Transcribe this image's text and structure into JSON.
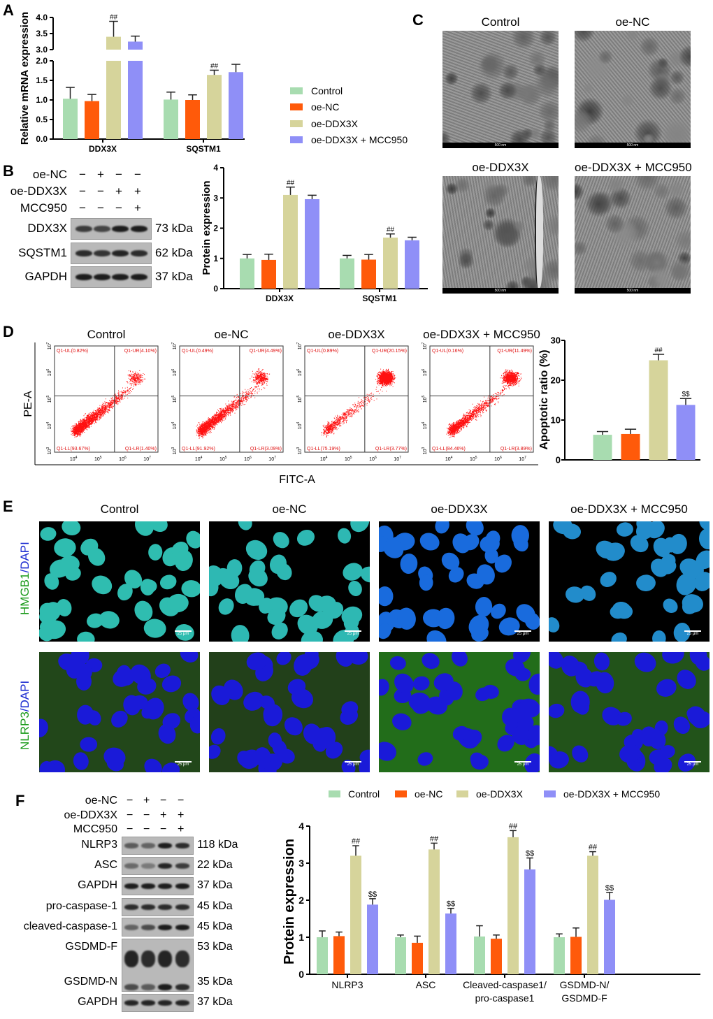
{
  "colors": {
    "Control": "#a8dcb0",
    "oe-NC": "#ff5a0a",
    "oe-DDX3X": "#d6d49b",
    "oe-DDX3X + MCC950": "#8f8ff7"
  },
  "panels": {
    "A": "A",
    "B": "B",
    "C": "C",
    "D": "D",
    "E": "E",
    "F": "F"
  },
  "legend": [
    "Control",
    "oe-NC",
    "oe-DDX3X",
    "oe-DDX3X + MCC950"
  ],
  "blotB": {
    "conditions": [
      {
        "label": "oe-NC",
        "signs": [
          "−",
          "+",
          "−",
          "−"
        ]
      },
      {
        "label": "oe-DDX3X",
        "signs": [
          "−",
          "−",
          "+",
          "+"
        ]
      },
      {
        "label": "MCC950",
        "signs": [
          "−",
          "−",
          "−",
          "+"
        ]
      }
    ],
    "rows": [
      {
        "label": "DDX3X",
        "kda": "73 kDa"
      },
      {
        "label": "SQSTM1",
        "kda": "62 kDa"
      },
      {
        "label": "GAPDH",
        "kda": "37 kDa"
      }
    ]
  },
  "tem": {
    "titles": [
      "Control",
      "oe-NC",
      "oe-DDX3X",
      "oe-DDX3X + MCC950"
    ],
    "scale": "500 nm",
    "arrow_color": "#e8201e"
  },
  "flow": {
    "titles": [
      "Control",
      "oe-NC",
      "oe-DDX3X",
      "oe-DDX3X + MCC950"
    ],
    "xlabel": "FITC-A",
    "ylabel": "PE-A",
    "ticks": [
      "10",
      "10",
      "10",
      "10",
      "10"
    ],
    "tick_exp": [
      "3",
      "4",
      "5",
      "6",
      "7"
    ],
    "quadrants": [
      {
        "UL": "Q1-UL(0.82%)",
        "UR": "Q1-UR(4.10%)",
        "LL": "Q1-LL(93.67%)",
        "LR": "Q1-LR(1.40%)"
      },
      {
        "UL": "Q1-UL(0.49%)",
        "UR": "Q1-UR(4.49%)",
        "LL": "Q1-LL(91.92%)",
        "LR": "Q1-LR(3.09%)"
      },
      {
        "UL": "Q1-UL(0.89%)",
        "UR": "Q1-UR(20.15%)",
        "LL": "Q1-LL(75.19%)",
        "LR": "Q1-LR(3.77%)"
      },
      {
        "UL": "Q1-UL(0.16%)",
        "UR": "Q1-UR(11.49%)",
        "LL": "Q1-LL(84.46%)",
        "LR": "Q1-LR(3.89%)"
      }
    ]
  },
  "if": {
    "titles": [
      "Control",
      "oe-NC",
      "oe-DDX3X",
      "oe-DDX3X + MCC950"
    ],
    "row1_label": {
      "a": "HMGB1",
      "b": "/DAPI"
    },
    "row2_label": {
      "a": "NLRP3",
      "b": "/DAPI"
    },
    "scale": "25 μm"
  },
  "blotF": {
    "conditions": [
      {
        "label": "oe-NC",
        "signs": [
          "−",
          "+",
          "−",
          "−"
        ]
      },
      {
        "label": "oe-DDX3X",
        "signs": [
          "−",
          "−",
          "+",
          "+"
        ]
      },
      {
        "label": "MCC950",
        "signs": [
          "−",
          "−",
          "−",
          "+"
        ]
      }
    ],
    "rows": [
      {
        "label": "NLRP3",
        "kda": "118 kDa"
      },
      {
        "label": "ASC",
        "kda": "22 kDa"
      },
      {
        "label": "GAPDH",
        "kda": "37 kDa"
      },
      {
        "label": "pro-caspase-1",
        "kda": "45 kDa"
      },
      {
        "label": "cleaved-caspase-1",
        "kda": "45 kDa"
      },
      {
        "label": "GSDMD-F",
        "kda": "53 kDa"
      },
      {
        "label": "GSDMD-N",
        "kda": "35 kDa"
      },
      {
        "label": "GAPDH",
        "kda": "37 kDa"
      }
    ]
  },
  "chart_data": [
    {
      "id": "A",
      "type": "bar",
      "ylabel": "Relative mRNA expression",
      "categories": [
        "DDX3X",
        "SQSTM1"
      ],
      "axis_break": [
        2.0,
        3.0
      ],
      "yticks": [
        "0.0",
        "0.5",
        "1.0",
        "1.5",
        "2.0",
        "3.0",
        "3.5",
        "4.0"
      ],
      "ylim": [
        0,
        4
      ],
      "series": [
        {
          "name": "Control",
          "values": [
            1.03,
            1.01
          ],
          "errors": [
            0.29,
            0.19
          ]
        },
        {
          "name": "oe-NC",
          "values": [
            0.97,
            1.0
          ],
          "errors": [
            0.17,
            0.13
          ]
        },
        {
          "name": "oe-DDX3X",
          "values": [
            3.4,
            1.64
          ],
          "errors": [
            0.48,
            0.12
          ],
          "annotations": [
            "##",
            "##"
          ]
        },
        {
          "name": "oe-DDX3X + MCC950",
          "values": [
            3.25,
            1.71
          ],
          "errors": [
            0.17,
            0.2
          ]
        }
      ]
    },
    {
      "id": "B",
      "type": "bar",
      "ylabel": "Protein expression",
      "categories": [
        "DDX3X",
        "SQSTM1"
      ],
      "yticks": [
        "0",
        "1",
        "2",
        "3",
        "4"
      ],
      "ylim": [
        0,
        4
      ],
      "series": [
        {
          "name": "Control",
          "values": [
            1.0,
            1.0
          ],
          "errors": [
            0.13,
            0.1
          ]
        },
        {
          "name": "oe-NC",
          "values": [
            0.95,
            0.96
          ],
          "errors": [
            0.19,
            0.17
          ]
        },
        {
          "name": "oe-DDX3X",
          "values": [
            3.1,
            1.69
          ],
          "errors": [
            0.26,
            0.12
          ],
          "annotations": [
            "##",
            "##"
          ]
        },
        {
          "name": "oe-DDX3X + MCC950",
          "values": [
            2.96,
            1.6
          ],
          "errors": [
            0.13,
            0.1
          ]
        }
      ]
    },
    {
      "id": "D",
      "type": "bar",
      "ylabel": "Apoptotic ratio (%)",
      "categories": [
        "Control",
        "oe-NC",
        "oe-DDX3X",
        "oe-DDX3X + MCC950"
      ],
      "yticks": [
        "0",
        "10",
        "20",
        "30"
      ],
      "ylim": [
        0,
        30
      ],
      "values": [
        6.3,
        6.5,
        25.0,
        13.8
      ],
      "errors": [
        0.8,
        1.2,
        1.5,
        1.6
      ],
      "annotations": [
        "",
        "",
        "##",
        "$$"
      ]
    },
    {
      "id": "F",
      "type": "bar",
      "ylabel": "Protein expression",
      "categories": [
        "NLRP3",
        "ASC",
        "Cleaved-caspase1/\npro-caspase1",
        "GSDMD-N/\nGSDMD-F"
      ],
      "yticks": [
        "0",
        "1",
        "2",
        "3",
        "4"
      ],
      "ylim": [
        0,
        4
      ],
      "legend": "top",
      "series": [
        {
          "name": "Control",
          "values": [
            1.0,
            1.0,
            1.02,
            1.0
          ],
          "errors": [
            0.17,
            0.06,
            0.29,
            0.09
          ]
        },
        {
          "name": "oe-NC",
          "values": [
            1.03,
            0.85,
            0.96,
            1.01
          ],
          "errors": [
            0.11,
            0.18,
            0.1,
            0.24
          ]
        },
        {
          "name": "oe-DDX3X",
          "values": [
            3.2,
            3.37,
            3.7,
            3.2
          ],
          "errors": [
            0.27,
            0.17,
            0.18,
            0.11
          ],
          "annotations": [
            "##",
            "##",
            "##",
            "##"
          ]
        },
        {
          "name": "oe-DDX3X + MCC950",
          "values": [
            1.88,
            1.64,
            2.83,
            2.01
          ],
          "errors": [
            0.16,
            0.14,
            0.31,
            0.2
          ],
          "annotations": [
            "$$",
            "$$",
            "$$",
            "$$"
          ]
        }
      ]
    }
  ]
}
